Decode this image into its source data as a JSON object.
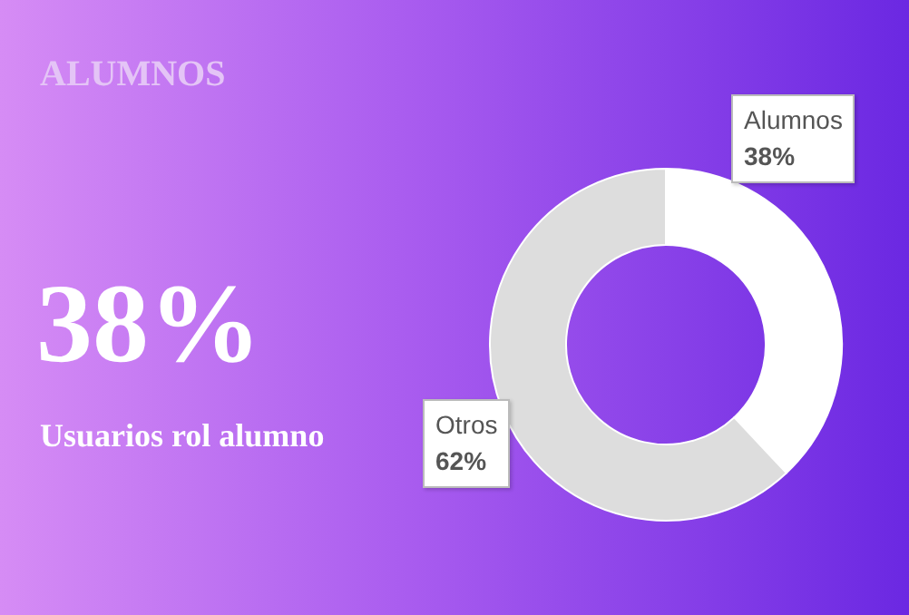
{
  "chart_data": {
    "type": "donut",
    "title": "ALUMNOS",
    "annotations": [
      "38%",
      "Usuarios rol alumno"
    ],
    "categories": [
      "Alumnos",
      "Otros"
    ],
    "values": [
      38,
      62
    ],
    "colors": [
      "#ffffff",
      "#dddddd"
    ],
    "value_labels": [
      "38%",
      "62%"
    ]
  }
}
